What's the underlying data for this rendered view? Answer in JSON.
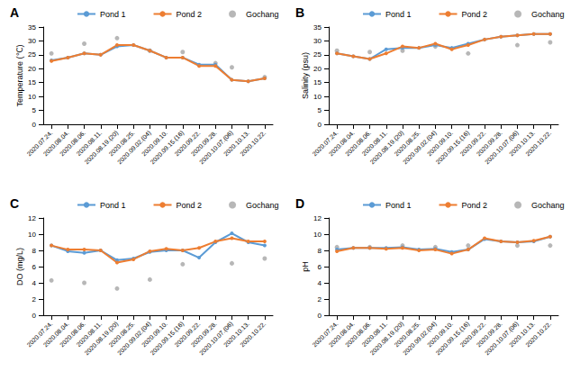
{
  "chart_data": [
    {
      "type": "line",
      "title": "A",
      "y_label": "Temperature (℃)",
      "categories": [
        "2020.07.24.",
        "2020.08.04.",
        "2020.08.06.",
        "2020.08.11.",
        "2020.08.19.(20)",
        "2020.08.25.",
        "2020.09.02.(04)",
        "2020.09.10.",
        "2020.09.15.(16)",
        "2020.09.22.",
        "2020.09.28.",
        "2020.10.07.(06)",
        "2020.10.13.",
        "2020.10.22."
      ],
      "series": [
        {
          "name": "Pond 1",
          "color": "#5b9bd5",
          "type": "line",
          "marker": "circle",
          "values": [
            23,
            24,
            25.5,
            25,
            28,
            28.5,
            26.5,
            24,
            24,
            21.5,
            21.5,
            16,
            15.5,
            16.5
          ]
        },
        {
          "name": "Pond 2",
          "color": "#ed7d31",
          "type": "line",
          "marker": "circle",
          "values": [
            22.8,
            24,
            25.5,
            25,
            28.5,
            28.5,
            26.5,
            24,
            24,
            21,
            21,
            16,
            15.5,
            16.5
          ]
        },
        {
          "name": "Gochang",
          "color": "#a5a5a5",
          "type": "scatter",
          "marker": "circle",
          "values": [
            25.5,
            null,
            29,
            null,
            31,
            null,
            26.5,
            null,
            26,
            null,
            22,
            20.5,
            null,
            17
          ]
        }
      ],
      "ylim": [
        0,
        35
      ],
      "yticks": [
        0,
        5,
        10,
        15,
        20,
        25,
        30,
        35
      ],
      "grid": false,
      "legend": "top"
    },
    {
      "type": "line",
      "title": "B",
      "y_label": "Salinity (psu)",
      "categories": [
        "2020.07.24.",
        "2020.08.04.",
        "2020.08.06.",
        "2020.08.11.",
        "2020.08.19.(20)",
        "2020.08.25.",
        "2020.09.02.(04)",
        "2020.09.10.",
        "2020.09.15.(16)",
        "2020.09.22.",
        "2020.09.28.",
        "2020.10.07.(06)",
        "2020.10.13.",
        "2020.10.22."
      ],
      "series": [
        {
          "name": "Pond 1",
          "color": "#5b9bd5",
          "type": "line",
          "marker": "circle",
          "values": [
            25.5,
            24.5,
            23.5,
            27,
            27.5,
            27.5,
            28.5,
            27.5,
            29,
            30.5,
            31.5,
            32,
            32.5,
            32.5
          ]
        },
        {
          "name": "Pond 2",
          "color": "#ed7d31",
          "type": "line",
          "marker": "circle",
          "values": [
            25.5,
            24.5,
            23.5,
            25.5,
            28,
            27.5,
            29,
            27,
            28.5,
            30.5,
            31.5,
            32,
            32.5,
            32.5
          ]
        },
        {
          "name": "Gochang",
          "color": "#a5a5a5",
          "type": "scatter",
          "marker": "circle",
          "values": [
            26.5,
            null,
            26,
            null,
            26.5,
            null,
            28,
            null,
            25.5,
            null,
            null,
            28.5,
            null,
            29.5
          ]
        }
      ],
      "ylim": [
        0,
        35
      ],
      "yticks": [
        0,
        5,
        10,
        15,
        20,
        25,
        30,
        35
      ],
      "grid": false,
      "legend": "top"
    },
    {
      "type": "line",
      "title": "C",
      "y_label": "DO (mg/L)",
      "categories": [
        "2020.07.24.",
        "2020.08.04.",
        "2020.08.06.",
        "2020.08.11.",
        "2020.08.19.(20)",
        "2020.08.25.",
        "2020.09.02.(04)",
        "2020.09.10.",
        "2020.09.15.(16)",
        "2020.09.22.",
        "2020.09.28.",
        "2020.10.07.(06)",
        "2020.10.13.",
        "2020.10.22."
      ],
      "series": [
        {
          "name": "Pond 1",
          "color": "#5b9bd5",
          "type": "line",
          "marker": "circle",
          "values": [
            8.6,
            7.9,
            7.7,
            8.0,
            6.8,
            7.0,
            7.8,
            8.0,
            8.0,
            7.1,
            9.0,
            10.1,
            9.0,
            8.6
          ]
        },
        {
          "name": "Pond 2",
          "color": "#ed7d31",
          "type": "line",
          "marker": "circle",
          "values": [
            8.6,
            8.1,
            8.1,
            8.0,
            6.5,
            6.9,
            7.9,
            8.2,
            8.0,
            8.3,
            9.1,
            9.5,
            9.1,
            9.1
          ]
        },
        {
          "name": "Gochang",
          "color": "#a5a5a5",
          "type": "scatter",
          "marker": "circle",
          "values": [
            4.3,
            null,
            4.0,
            null,
            3.3,
            null,
            4.4,
            null,
            6.3,
            null,
            null,
            6.4,
            null,
            7.0
          ]
        }
      ],
      "ylim": [
        0,
        12
      ],
      "yticks": [
        0,
        2,
        4,
        6,
        8,
        10,
        12
      ],
      "grid": false,
      "legend": "top"
    },
    {
      "type": "line",
      "title": "D",
      "y_label": "pH",
      "categories": [
        "2020.07.24.",
        "2020.08.04.",
        "2020.08.06.",
        "2020.08.11.",
        "2020.08.19.(20)",
        "2020.08.25.",
        "2020.09.02.(04)",
        "2020.09.10.",
        "2020.09.15.(16)",
        "2020.09.22.",
        "2020.09.28.",
        "2020.10.07.(06)",
        "2020.10.13.",
        "2020.10.22."
      ],
      "series": [
        {
          "name": "Pond 1",
          "color": "#5b9bd5",
          "type": "line",
          "marker": "circle",
          "values": [
            8.1,
            8.3,
            8.3,
            8.3,
            8.4,
            8.1,
            8.2,
            7.8,
            8.1,
            9.4,
            9.1,
            9.0,
            9.1,
            9.7
          ]
        },
        {
          "name": "Pond 2",
          "color": "#ed7d31",
          "type": "line",
          "marker": "circle",
          "values": [
            7.9,
            8.3,
            8.3,
            8.2,
            8.3,
            8.0,
            8.1,
            7.6,
            8.1,
            9.5,
            9.1,
            9.0,
            9.2,
            9.7
          ]
        },
        {
          "name": "Gochang",
          "color": "#a5a5a5",
          "type": "scatter",
          "marker": "circle",
          "values": [
            8.4,
            null,
            8.4,
            null,
            8.6,
            null,
            8.4,
            null,
            8.6,
            null,
            null,
            8.6,
            null,
            8.6
          ]
        }
      ],
      "ylim": [
        0,
        12
      ],
      "yticks": [
        0,
        2,
        4,
        6,
        8,
        10,
        12
      ],
      "grid": false,
      "legend": "top"
    }
  ]
}
